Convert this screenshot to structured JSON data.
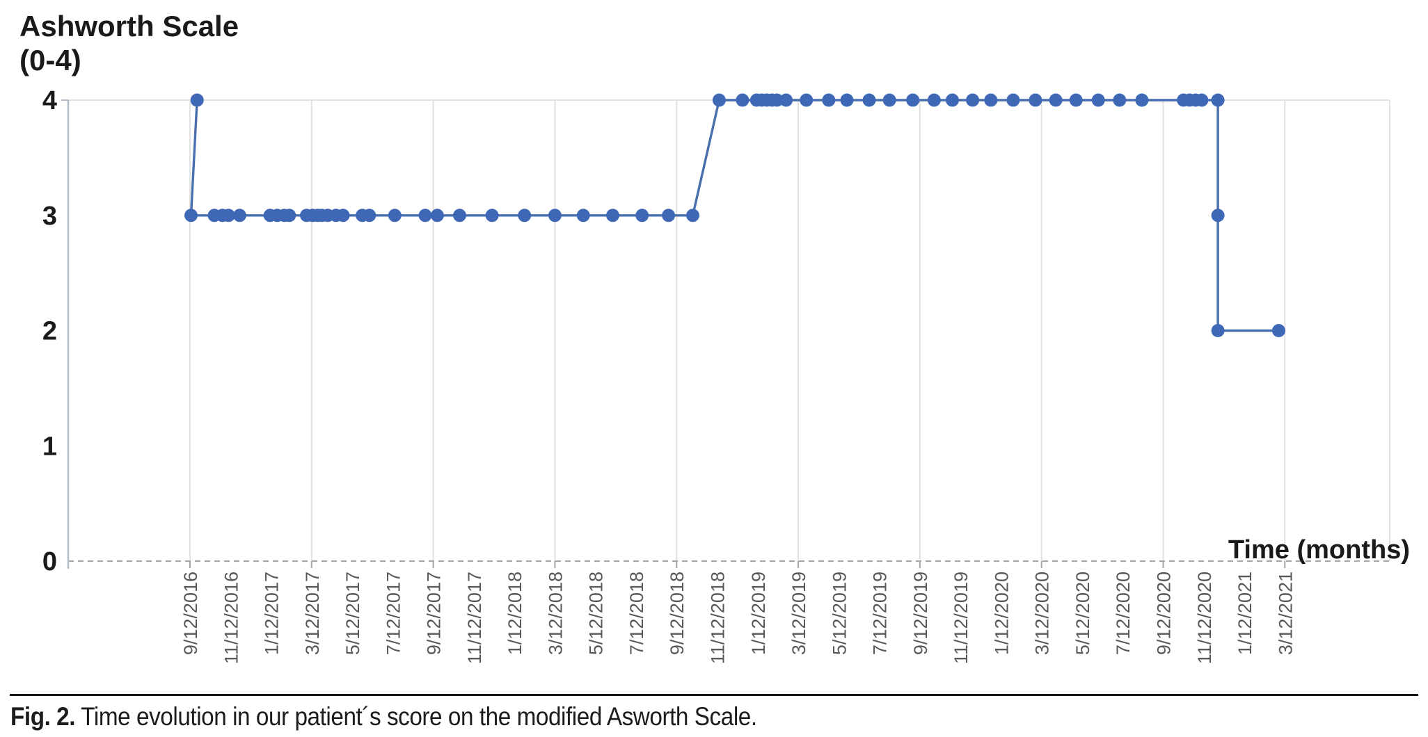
{
  "figure": {
    "y_axis_title_line1": "Ashworth Scale",
    "y_axis_title_line2": "(0-4)",
    "x_axis_title": "Time (months)",
    "caption_label": "Fig. 2.",
    "caption_text": " Time evolution in our patient´s score on the modified Asworth Scale."
  },
  "chart_data": {
    "type": "line",
    "title": "Ashworth Scale (0-4)",
    "xlabel": "Time (months)",
    "ylabel": "Ashworth Scale (0-4)",
    "ylim": [
      0,
      4
    ],
    "y_ticks": [
      4,
      3,
      2,
      1,
      0
    ],
    "x_tick_interval_months": 2,
    "x_tick_labels": [
      "9/12/2016",
      "11/12/2016",
      "1/12/2017",
      "3/12/2017",
      "5/12/2017",
      "7/12/2017",
      "9/12/2017",
      "11/12/2017",
      "1/12/2018",
      "3/12/2018",
      "5/12/2018",
      "7/12/2018",
      "9/12/2018",
      "11/12/2018",
      "1/12/2019",
      "3/12/2019",
      "5/12/2019",
      "7/12/2019",
      "9/12/2019",
      "11/12/2019",
      "1/12/2020",
      "3/12/2020",
      "5/12/2020",
      "7/12/2020",
      "9/12/2020",
      "11/12/2020",
      "1/12/2021",
      "3/12/2021"
    ],
    "gridlines": "vertical light gridlines every 6 months; dashed horizontal baseline at y=0; light top and right plot border",
    "legend": "none",
    "colors": {
      "point": "#3e68b5",
      "line": "#4a6fae",
      "grid": "#e2e2e2",
      "y_axis": "#b3bcc9",
      "baseline_dash": "#a6a6a6",
      "x_tick_text": "#595959",
      "text": "#1a1a1a"
    },
    "points_note": "t = months after first tick (9/12/2016); v = modified Ashworth score",
    "points": [
      {
        "t": 0.35,
        "v": 4
      },
      {
        "t": 0.05,
        "v": 3
      },
      {
        "t": 1.2,
        "v": 3
      },
      {
        "t": 1.6,
        "v": 3
      },
      {
        "t": 1.9,
        "v": 3
      },
      {
        "t": 2.45,
        "v": 3
      },
      {
        "t": 3.95,
        "v": 3
      },
      {
        "t": 4.3,
        "v": 3
      },
      {
        "t": 4.65,
        "v": 3
      },
      {
        "t": 4.9,
        "v": 3
      },
      {
        "t": 5.75,
        "v": 3
      },
      {
        "t": 6.05,
        "v": 3
      },
      {
        "t": 6.3,
        "v": 3
      },
      {
        "t": 6.5,
        "v": 3
      },
      {
        "t": 6.8,
        "v": 3
      },
      {
        "t": 7.2,
        "v": 3
      },
      {
        "t": 7.55,
        "v": 3
      },
      {
        "t": 8.5,
        "v": 3
      },
      {
        "t": 8.85,
        "v": 3
      },
      {
        "t": 10.1,
        "v": 3
      },
      {
        "t": 11.6,
        "v": 3
      },
      {
        "t": 12.2,
        "v": 3
      },
      {
        "t": 13.3,
        "v": 3
      },
      {
        "t": 14.9,
        "v": 3
      },
      {
        "t": 16.5,
        "v": 3
      },
      {
        "t": 18.0,
        "v": 3
      },
      {
        "t": 19.4,
        "v": 3
      },
      {
        "t": 20.85,
        "v": 3
      },
      {
        "t": 22.3,
        "v": 3
      },
      {
        "t": 23.6,
        "v": 3
      },
      {
        "t": 24.8,
        "v": 3
      },
      {
        "t": 26.1,
        "v": 4
      },
      {
        "t": 27.25,
        "v": 4
      },
      {
        "t": 27.95,
        "v": 4
      },
      {
        "t": 28.2,
        "v": 4
      },
      {
        "t": 28.45,
        "v": 4
      },
      {
        "t": 28.7,
        "v": 4
      },
      {
        "t": 28.95,
        "v": 4
      },
      {
        "t": 29.4,
        "v": 4
      },
      {
        "t": 30.4,
        "v": 4
      },
      {
        "t": 31.5,
        "v": 4
      },
      {
        "t": 32.4,
        "v": 4
      },
      {
        "t": 33.5,
        "v": 4
      },
      {
        "t": 34.5,
        "v": 4
      },
      {
        "t": 35.65,
        "v": 4
      },
      {
        "t": 36.7,
        "v": 4
      },
      {
        "t": 37.6,
        "v": 4
      },
      {
        "t": 38.6,
        "v": 4
      },
      {
        "t": 39.5,
        "v": 4
      },
      {
        "t": 40.6,
        "v": 4
      },
      {
        "t": 41.7,
        "v": 4
      },
      {
        "t": 42.7,
        "v": 4
      },
      {
        "t": 43.7,
        "v": 4
      },
      {
        "t": 44.8,
        "v": 4
      },
      {
        "t": 45.85,
        "v": 4
      },
      {
        "t": 46.95,
        "v": 4
      },
      {
        "t": 49.0,
        "v": 4
      },
      {
        "t": 49.3,
        "v": 4
      },
      {
        "t": 49.6,
        "v": 4
      },
      {
        "t": 49.9,
        "v": 4
      },
      {
        "t": 50.7,
        "v": 4
      },
      {
        "t": 50.7,
        "v": 3
      },
      {
        "t": 50.7,
        "v": 2
      },
      {
        "t": 53.7,
        "v": 2
      }
    ]
  }
}
